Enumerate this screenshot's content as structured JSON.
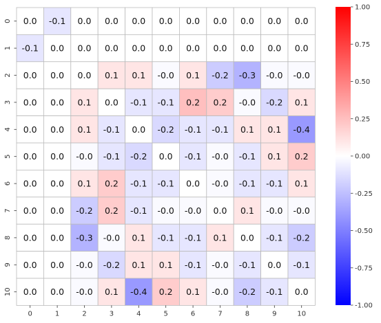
{
  "chart_data": {
    "type": "heatmap",
    "title": "",
    "xlabel": "",
    "ylabel": "",
    "x_ticks": [
      "0",
      "1",
      "2",
      "3",
      "4",
      "5",
      "6",
      "7",
      "8",
      "9",
      "10"
    ],
    "y_ticks": [
      "0",
      "1",
      "2",
      "3",
      "4",
      "5",
      "6",
      "7",
      "8",
      "9",
      "10"
    ],
    "values": [
      [
        0.0,
        -0.1,
        0.0,
        0.0,
        0.0,
        0.0,
        0.0,
        0.0,
        0.0,
        0.0,
        0.0
      ],
      [
        -0.1,
        0.0,
        0.0,
        0.0,
        0.0,
        0.0,
        0.0,
        0.0,
        0.0,
        0.0,
        0.0
      ],
      [
        0.0,
        0.0,
        0.0,
        0.1,
        0.1,
        -0.02,
        0.1,
        -0.2,
        -0.3,
        -0.02,
        -0.02
      ],
      [
        0.0,
        0.0,
        0.1,
        0.0,
        -0.1,
        -0.1,
        0.25,
        0.2,
        -0.02,
        -0.15,
        0.1
      ],
      [
        0.0,
        0.0,
        0.1,
        -0.1,
        0.0,
        -0.15,
        -0.1,
        -0.1,
        0.1,
        0.1,
        -0.4
      ],
      [
        0.0,
        0.0,
        -0.02,
        -0.1,
        -0.15,
        0.0,
        -0.1,
        -0.02,
        -0.1,
        0.1,
        0.2
      ],
      [
        0.0,
        0.0,
        0.1,
        0.2,
        -0.1,
        -0.1,
        0.0,
        -0.02,
        -0.1,
        -0.1,
        0.1
      ],
      [
        0.0,
        0.0,
        -0.2,
        0.2,
        -0.1,
        -0.02,
        -0.02,
        0.0,
        0.1,
        -0.02,
        -0.02
      ],
      [
        0.0,
        0.0,
        -0.3,
        -0.02,
        0.1,
        -0.1,
        -0.1,
        0.1,
        0.0,
        -0.1,
        -0.2
      ],
      [
        0.0,
        0.0,
        -0.02,
        -0.15,
        0.1,
        0.1,
        -0.1,
        -0.02,
        -0.1,
        0.0,
        -0.1
      ],
      [
        0.0,
        0.0,
        -0.02,
        0.1,
        -0.4,
        0.2,
        0.1,
        -0.02,
        -0.2,
        -0.1,
        0.0
      ]
    ],
    "labels": [
      [
        "0.0",
        "-0.1",
        "0.0",
        "0.0",
        "0.0",
        "0.0",
        "0.0",
        "0.0",
        "0.0",
        "0.0",
        "0.0"
      ],
      [
        "-0.1",
        "0.0",
        "0.0",
        "0.0",
        "0.0",
        "0.0",
        "0.0",
        "0.0",
        "0.0",
        "0.0",
        "0.0"
      ],
      [
        "0.0",
        "0.0",
        "0.0",
        "0.1",
        "0.1",
        "-0.0",
        "0.1",
        "-0.2",
        "-0.3",
        "-0.0",
        "-0.0"
      ],
      [
        "0.0",
        "0.0",
        "0.1",
        "0.0",
        "-0.1",
        "-0.1",
        "0.2",
        "0.2",
        "-0.0",
        "-0.2",
        "0.1"
      ],
      [
        "0.0",
        "0.0",
        "0.1",
        "-0.1",
        "0.0",
        "-0.2",
        "-0.1",
        "-0.1",
        "0.1",
        "0.1",
        "-0.4"
      ],
      [
        "0.0",
        "0.0",
        "-0.0",
        "-0.1",
        "-0.2",
        "0.0",
        "-0.1",
        "-0.0",
        "-0.1",
        "0.1",
        "0.2"
      ],
      [
        "0.0",
        "0.0",
        "0.1",
        "0.2",
        "-0.1",
        "-0.1",
        "0.0",
        "-0.0",
        "-0.1",
        "-0.1",
        "0.1"
      ],
      [
        "0.0",
        "0.0",
        "-0.2",
        "0.2",
        "-0.1",
        "-0.0",
        "-0.0",
        "0.0",
        "0.1",
        "-0.0",
        "-0.0"
      ],
      [
        "0.0",
        "0.0",
        "-0.3",
        "-0.0",
        "0.1",
        "-0.1",
        "-0.1",
        "0.1",
        "0.0",
        "-0.1",
        "-0.2"
      ],
      [
        "0.0",
        "0.0",
        "-0.0",
        "-0.2",
        "0.1",
        "0.1",
        "-0.1",
        "-0.0",
        "-0.1",
        "0.0",
        "-0.1"
      ],
      [
        "0.0",
        "0.0",
        "-0.0",
        "0.1",
        "-0.4",
        "0.2",
        "0.1",
        "-0.0",
        "-0.2",
        "-0.1",
        "0.0"
      ]
    ],
    "colormap": "bwr",
    "color_min": "#0000ff",
    "color_mid": "#ffffff",
    "color_max": "#ff0000",
    "vmin": -1.0,
    "vmax": 1.0,
    "colorbar_ticks": [
      "1.00",
      "0.75",
      "0.50",
      "0.25",
      "0.00",
      "-0.25",
      "-0.50",
      "-0.75",
      "-1.00"
    ],
    "grid": true,
    "grid_color": "#bbbbbb",
    "legend": "colorbar-right"
  }
}
